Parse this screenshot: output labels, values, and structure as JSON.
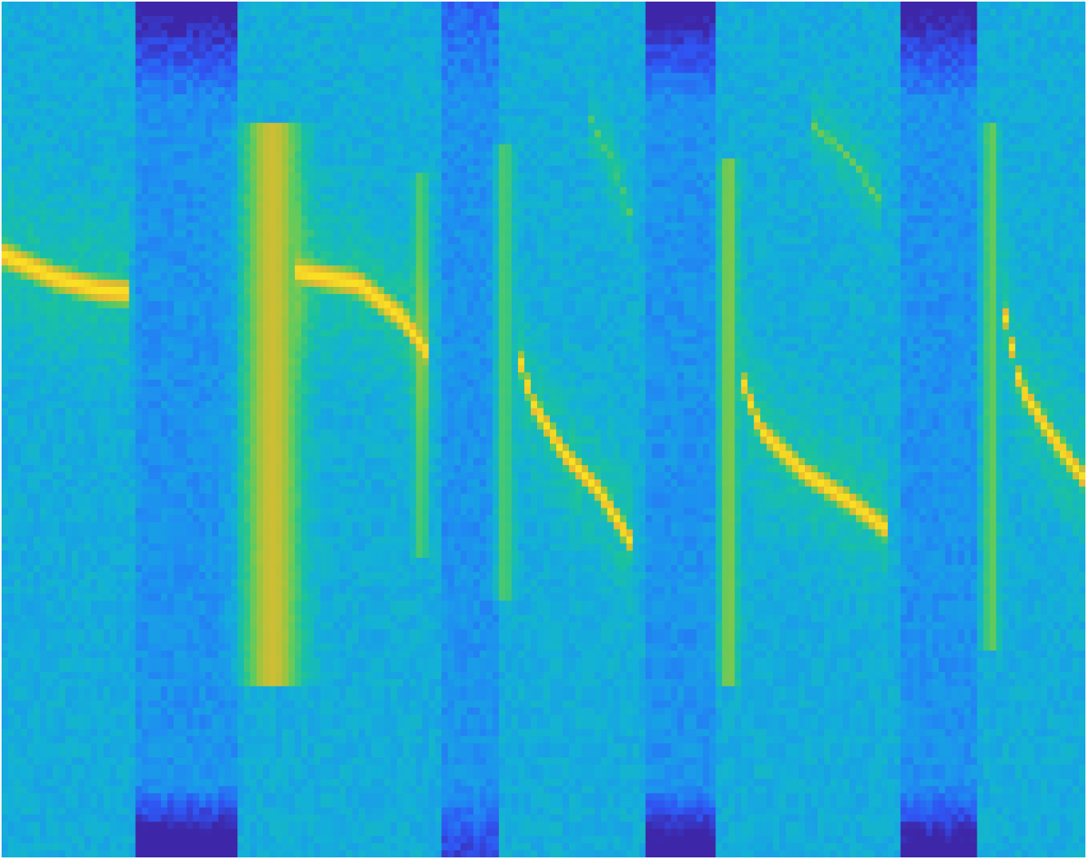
{
  "chart_data": {
    "type": "heatmap",
    "title": "",
    "xlabel": "",
    "ylabel": "",
    "axes_visible": false,
    "colormap": "parula",
    "colormap_stops": [
      "#3e26a8",
      "#2f55f3",
      "#1e8ff1",
      "#13b1d8",
      "#1ac29f",
      "#5ccb5f",
      "#a8c33c",
      "#eaba30",
      "#fae023"
    ],
    "x_range": [
      0,
      1
    ],
    "y_range": [
      0,
      1
    ],
    "background_level": 0.36,
    "quiet_bands": [
      {
        "x0": 0.125,
        "x1": 0.218,
        "top_depth": 0.33,
        "bottom_depth": 0.45
      },
      {
        "x0": 0.405,
        "x1": 0.458,
        "top_depth": 0.12,
        "bottom_depth": 0.2
      },
      {
        "x0": 0.595,
        "x1": 0.66,
        "top_depth": 0.33,
        "bottom_depth": 0.4
      },
      {
        "x0": 0.83,
        "x1": 0.9,
        "top_depth": 0.32,
        "bottom_depth": 0.38
      }
    ],
    "series": [
      {
        "x": [
          0.0,
          0.05,
          0.09,
          0.118
        ],
        "y": [
          0.705,
          0.677,
          0.663,
          0.66
        ],
        "level": 1.0,
        "width": 0.016
      },
      {
        "x": [
          0.27,
          0.33,
          0.37,
          0.395
        ],
        "y": [
          0.685,
          0.67,
          0.63,
          0.585
        ],
        "level": 1.0,
        "width": 0.016
      },
      {
        "x": [
          0.474,
          0.49,
          0.52,
          0.55,
          0.58
        ],
        "y": [
          0.6,
          0.53,
          0.47,
          0.43,
          0.37
        ],
        "level": 1.0,
        "width": 0.014
      },
      {
        "x": [
          0.68,
          0.7,
          0.74,
          0.78,
          0.815
        ],
        "y": [
          0.57,
          0.5,
          0.45,
          0.418,
          0.385
        ],
        "level": 1.0,
        "width": 0.014
      },
      {
        "x": [
          0.924,
          0.94,
          0.97,
          1.0
        ],
        "y": [
          0.645,
          0.55,
          0.49,
          0.44
        ],
        "level": 1.0,
        "width": 0.014
      },
      {
        "x": [
          0.54,
          0.565,
          0.584
        ],
        "y": [
          0.87,
          0.81,
          0.735
        ],
        "level": 0.62,
        "width": 0.008
      },
      {
        "x": [
          0.745,
          0.785,
          0.813
        ],
        "y": [
          0.86,
          0.815,
          0.76
        ],
        "level": 0.66,
        "width": 0.008
      }
    ],
    "vertical_streaks": [
      {
        "x": 0.25,
        "y0": 0.2,
        "y1": 0.86,
        "level": 0.82,
        "width": 0.018
      },
      {
        "x": 0.387,
        "y0": 0.35,
        "y1": 0.8,
        "level": 0.6,
        "width": 0.005
      },
      {
        "x": 0.464,
        "y0": 0.3,
        "y1": 0.83,
        "level": 0.6,
        "width": 0.006
      },
      {
        "x": 0.671,
        "y0": 0.2,
        "y1": 0.82,
        "level": 0.7,
        "width": 0.006
      },
      {
        "x": 0.913,
        "y0": 0.24,
        "y1": 0.86,
        "level": 0.65,
        "width": 0.005
      }
    ]
  }
}
